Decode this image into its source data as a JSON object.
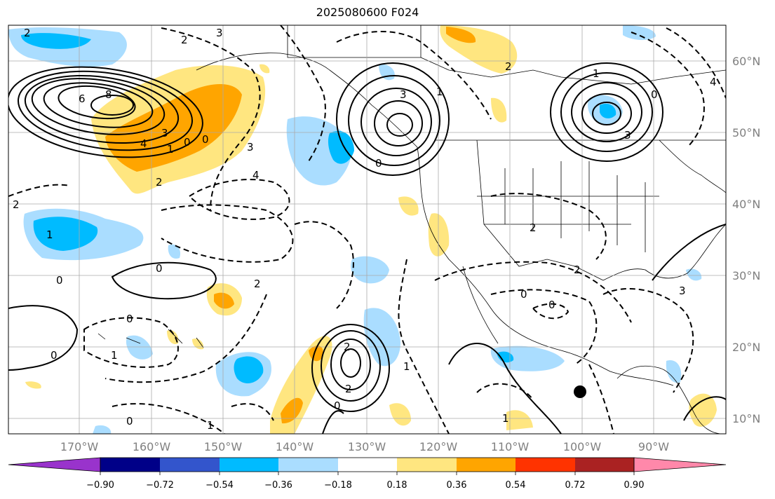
{
  "title": "2025080600 F024",
  "map": {
    "lat_labels": [
      "60°N",
      "50°N",
      "40°N",
      "30°N",
      "20°N",
      "10°N"
    ],
    "lon_labels": [
      "170°W",
      "160°W",
      "150°W",
      "140°W",
      "130°W",
      "120°W",
      "110°W",
      "100°W",
      "90°W"
    ],
    "contour_labels": [
      "2",
      "3",
      "2",
      "6",
      "8",
      "4",
      "3",
      "1",
      "0",
      "0",
      "3",
      "4",
      "2",
      "2",
      "1",
      "0",
      "0",
      "2",
      "3",
      "1",
      "0",
      "3",
      "2",
      "1",
      "0",
      "0",
      "1",
      "2",
      "2",
      "1",
      "0",
      "0",
      "0",
      "1",
      "1",
      "2",
      "0",
      "0",
      "2",
      "3",
      "4"
    ],
    "marker": "storm-center-dot"
  },
  "colorbar": {
    "tick_labels": [
      "−0.90",
      "−0.72",
      "−0.54",
      "−0.36",
      "−0.18",
      "0.18",
      "0.36",
      "0.54",
      "0.72",
      "0.90"
    ],
    "colors": [
      "#9933cc",
      "#000088",
      "#3355cc",
      "#00bbff",
      "#aaddff",
      "#ffffff",
      "#ffe680",
      "#ffa500",
      "#ff3300",
      "#aa2222",
      "#ff88aa"
    ]
  },
  "colors": {
    "shade_neg_light": "#aaddff",
    "shade_neg": "#00bbff",
    "shade_pos_light": "#ffe680",
    "shade_pos": "#ffa500",
    "contour": "#000000",
    "grid": "#aaaaaa",
    "coast": "#000000"
  }
}
